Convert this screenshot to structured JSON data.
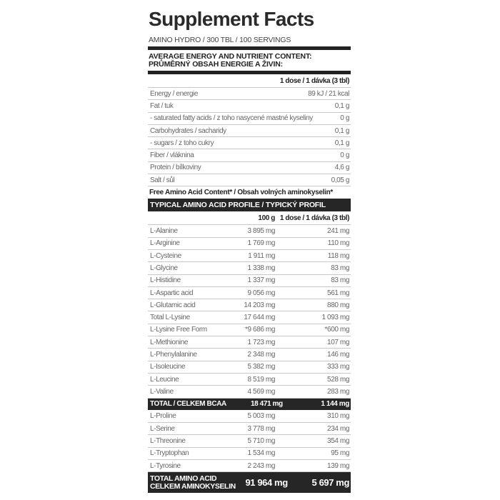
{
  "title": "Supplement Facts",
  "subtitle": "AMINO HYDRO / 300 TBL / 100 SERVINGS",
  "nutrient_header": [
    "AVERAGE ENERGY AND NUTRIENT CONTENT:",
    "PRŮMĚRNÝ OBSAH ENERGIE A ŽIVIN:"
  ],
  "nutrient_col": "1 dose / 1 dávka (3 tbl)",
  "nutrients": [
    {
      "name": "Energy / energie",
      "value": "89 kJ / 21 kcal"
    },
    {
      "name": "Fat / tuk",
      "value": "0,1 g"
    },
    {
      "name": "- saturated fatty acids / z toho nasycené mastné kyseliny",
      "value": "0 g"
    },
    {
      "name": "Carbohydrates / sacharidy",
      "value": "0,1 g"
    },
    {
      "name": "- sugars / z toho cukry",
      "value": "0,1 g"
    },
    {
      "name": "Fiber / vláknina",
      "value": "0 g"
    },
    {
      "name": "Protein / bílkoviny",
      "value": "4,6 g"
    },
    {
      "name": "Salt / sůl",
      "value": "0,05 g"
    }
  ],
  "free_amino": "Free Amino Acid Content* / Obsah volných aminokyselin*",
  "profile_header": "TYPICAL AMINO ACID PROFILE / TYPICKÝ PROFIL AMINOKYSELIN:",
  "profile_cols": [
    "100 g",
    "1 dose / 1 dávka (3 tbl)"
  ],
  "amino_a": [
    {
      "name": "L-Alanine",
      "per100": "3 895 mg",
      "dose": "241 mg"
    },
    {
      "name": "L-Arginine",
      "per100": "1 769 mg",
      "dose": "110 mg"
    },
    {
      "name": "L-Cysteine",
      "per100": "1 911 mg",
      "dose": "118 mg"
    },
    {
      "name": "L-Glycine",
      "per100": "1 338 mg",
      "dose": "83 mg"
    },
    {
      "name": "L-Histidine",
      "per100": "1 337 mg",
      "dose": "83 mg"
    },
    {
      "name": "L-Aspartic acid",
      "per100": "9 056 mg",
      "dose": "561 mg"
    },
    {
      "name": "L-Glutamic acid",
      "per100": "14 203 mg",
      "dose": "880 mg"
    },
    {
      "name": "Total L-Lysine",
      "per100": "17 644 mg",
      "dose": "1 093 mg"
    },
    {
      "name": "L-Lysine Free Form",
      "per100": "*9 686 mg",
      "dose": "*600 mg"
    },
    {
      "name": "L-Methionine",
      "per100": "1 723 mg",
      "dose": "107 mg"
    },
    {
      "name": "L-Phenylalanine",
      "per100": "2 348 mg",
      "dose": "146 mg"
    },
    {
      "name": "L-Isoleucine",
      "per100": "5 382 mg",
      "dose": "333 mg"
    },
    {
      "name": "L-Leucine",
      "per100": "8 519 mg",
      "dose": "528 mg"
    },
    {
      "name": "L-Valine",
      "per100": "4 569 mg",
      "dose": "283 mg"
    }
  ],
  "bcaa": {
    "name": "TOTAL / CELKEM BCAA",
    "per100": "18 471 mg",
    "dose": "1 144 mg"
  },
  "amino_b": [
    {
      "name": "L-Proline",
      "per100": "5 003 mg",
      "dose": "310 mg"
    },
    {
      "name": "L-Serine",
      "per100": "3 778 mg",
      "dose": "234 mg"
    },
    {
      "name": "L-Threonine",
      "per100": "5 710 mg",
      "dose": "354 mg"
    },
    {
      "name": "L-Tryptophan",
      "per100": "1 534 mg",
      "dose": "95 mg"
    },
    {
      "name": "L-Tyrosine",
      "per100": "2 243 mg",
      "dose": "139 mg"
    }
  ],
  "total": {
    "name": [
      "TOTAL AMINO ACID",
      "CELKEM AMINOKYSELIN"
    ],
    "per100": "91 964 mg",
    "dose": "5 697 mg"
  }
}
